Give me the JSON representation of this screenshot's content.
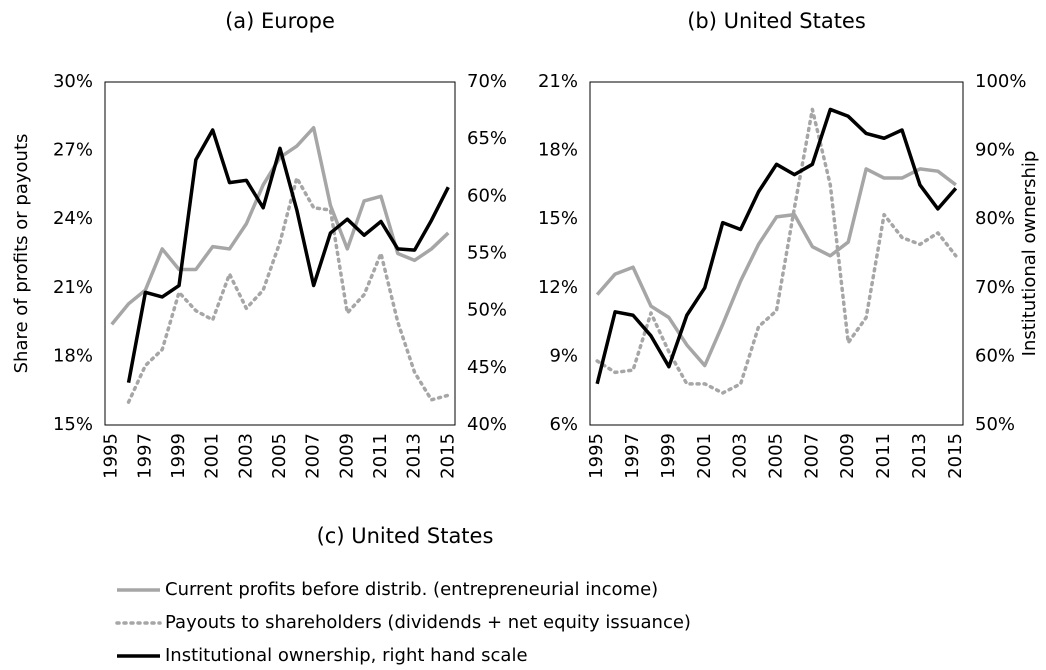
{
  "chart_data": [
    {
      "type": "line",
      "title": "(a) Europe",
      "y_label": "Share of profits or payouts",
      "x": [
        1995,
        1996,
        1997,
        1998,
        1999,
        2000,
        2001,
        2002,
        2003,
        2004,
        2005,
        2006,
        2007,
        2008,
        2009,
        2010,
        2011,
        2012,
        2013,
        2014,
        2015
      ],
      "xlim": [
        1994.6,
        2015.4
      ],
      "xticks": [
        1995,
        1997,
        1999,
        2001,
        2003,
        2005,
        2007,
        2009,
        2011,
        2013,
        2015
      ],
      "ylim": [
        15,
        30
      ],
      "yticks": [
        {
          "value": 15,
          "label": "15%"
        },
        {
          "value": 18,
          "label": "18%"
        },
        {
          "value": 21,
          "label": "21%"
        },
        {
          "value": 24,
          "label": "24%"
        },
        {
          "value": 27,
          "label": "27%"
        },
        {
          "value": 30,
          "label": "30%"
        }
      ],
      "y2lim": [
        40,
        70
      ],
      "y2ticks": [
        {
          "value": 40,
          "label": "40%"
        },
        {
          "value": 45,
          "label": "45%"
        },
        {
          "value": 50,
          "label": "50%"
        },
        {
          "value": 55,
          "label": "55%"
        },
        {
          "value": 60,
          "label": "60%"
        },
        {
          "value": 65,
          "label": "65%"
        },
        {
          "value": 70,
          "label": "70%"
        }
      ],
      "grid": false,
      "series": [
        {
          "name": "Current profits before distrib. (entrepreneurial income)",
          "color": "#a6a6a6",
          "line_style": "solid",
          "values": [
            19.4,
            20.3,
            20.9,
            22.7,
            21.8,
            21.8,
            22.8,
            22.7,
            23.8,
            25.5,
            26.7,
            27.2,
            28.0,
            24.6,
            22.7,
            24.8,
            25.0,
            22.5,
            22.2,
            22.7,
            23.4
          ]
        },
        {
          "name": "Payouts to shareholders (dividends + net equity issuance)",
          "color": "#a6a6a6",
          "line_style": "dotted",
          "values": [
            null,
            16.0,
            17.6,
            18.3,
            20.8,
            20.0,
            19.6,
            21.6,
            20.1,
            20.9,
            23.0,
            25.8,
            24.5,
            24.4,
            19.9,
            20.7,
            22.5,
            19.5,
            17.3,
            16.1,
            16.3
          ]
        },
        {
          "name": "Institutional ownership, right hand scale",
          "color": "#000000",
          "line_style": "solid",
          "axis": "y2",
          "values": [
            null,
            43.7,
            51.6,
            51.2,
            52.2,
            63.2,
            65.8,
            61.2,
            61.4,
            59.0,
            64.2,
            58.8,
            52.2,
            56.8,
            58.0,
            56.6,
            57.8,
            55.4,
            55.3,
            57.9,
            60.8
          ]
        }
      ]
    },
    {
      "type": "line",
      "title": "(b) United States",
      "y2_label": "Institutional ownership",
      "x": [
        1995,
        1996,
        1997,
        1998,
        1999,
        2000,
        2001,
        2002,
        2003,
        2004,
        2005,
        2006,
        2007,
        2008,
        2009,
        2010,
        2011,
        2012,
        2013,
        2014,
        2015
      ],
      "xlim": [
        1994.6,
        2015.4
      ],
      "xticks": [
        1995,
        1997,
        1999,
        2001,
        2003,
        2005,
        2007,
        2009,
        2011,
        2013,
        2015
      ],
      "ylim": [
        6,
        21
      ],
      "yticks": [
        {
          "value": 6,
          "label": "6%"
        },
        {
          "value": 9,
          "label": "9%"
        },
        {
          "value": 12,
          "label": "12%"
        },
        {
          "value": 15,
          "label": "15%"
        },
        {
          "value": 18,
          "label": "18%"
        },
        {
          "value": 21,
          "label": "21%"
        }
      ],
      "y2lim": [
        50,
        100
      ],
      "y2ticks": [
        {
          "value": 50,
          "label": "50%"
        },
        {
          "value": 60,
          "label": "60%"
        },
        {
          "value": 70,
          "label": "70%"
        },
        {
          "value": 80,
          "label": "80%"
        },
        {
          "value": 90,
          "label": "90%"
        },
        {
          "value": 100,
          "label": "100%"
        }
      ],
      "grid": false,
      "series": [
        {
          "name": "Current profits before distrib. (entrepreneurial income)",
          "color": "#a6a6a6",
          "line_style": "solid",
          "values": [
            11.7,
            12.6,
            12.9,
            11.2,
            10.7,
            9.5,
            8.6,
            10.4,
            12.3,
            13.9,
            15.1,
            15.2,
            13.8,
            13.4,
            14.0,
            17.2,
            16.8,
            16.8,
            17.2,
            17.1,
            16.5
          ]
        },
        {
          "name": "Payouts to shareholders (dividends + net equity issuance)",
          "color": "#a6a6a6",
          "line_style": "dotted",
          "values": [
            8.8,
            8.3,
            8.4,
            10.9,
            9.2,
            7.8,
            7.8,
            7.4,
            7.8,
            10.3,
            11.0,
            15.5,
            19.8,
            16.5,
            9.6,
            10.7,
            15.2,
            14.2,
            13.9,
            14.4,
            13.4
          ]
        },
        {
          "name": "Institutional ownership, right hand scale",
          "color": "#000000",
          "line_style": "solid",
          "axis": "y2",
          "values": [
            56.0,
            66.5,
            66.0,
            63.0,
            58.5,
            66.0,
            70.0,
            79.5,
            78.5,
            84.0,
            88.0,
            86.5,
            88.0,
            96.0,
            95.0,
            92.5,
            91.8,
            93.0,
            85.0,
            81.5,
            84.5
          ]
        }
      ]
    }
  ],
  "caption": "(c) United States"
}
